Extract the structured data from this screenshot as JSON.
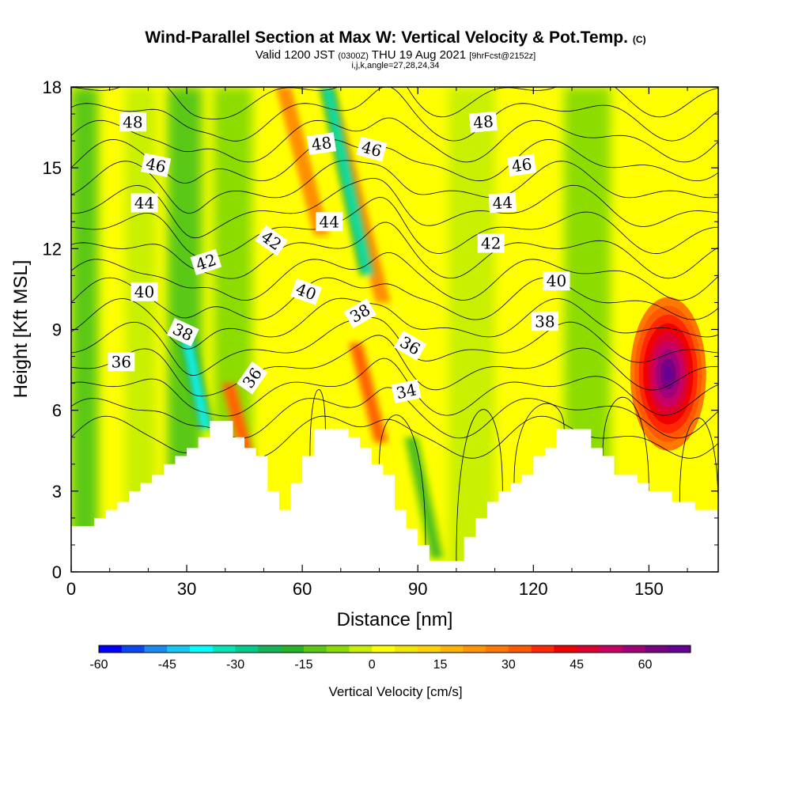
{
  "title": {
    "main": "Wind-Parallel Section at Max W: Vertical Velocity & Pot.Temp.",
    "copyright": "(C)",
    "valid_prefix": "Valid 1200 JST",
    "valid_utc": "(0300Z)",
    "valid_date": "THU 19 Aug 2021",
    "forecast": "[9hrFcst@2152z]",
    "indices": "i,j,k,angle=27,28,24,34"
  },
  "chart_data": {
    "type": "heatmap",
    "xlabel": "Distance [nm]",
    "ylabel": "Height [Kft MSL]",
    "xlim": [
      0,
      168
    ],
    "ylim": [
      0,
      18
    ],
    "xticks": [
      0,
      30,
      60,
      90,
      120,
      150
    ],
    "yticks": [
      0,
      3,
      6,
      9,
      12,
      15,
      18
    ],
    "colorbar": {
      "label": "Vertical Velocity [cm/s]",
      "range": [
        -60,
        70
      ],
      "step": 5,
      "tick_values": [
        -60,
        -45,
        -30,
        -15,
        0,
        15,
        30,
        45,
        60
      ],
      "colors": [
        "#0000ff",
        "#0a46f2",
        "#1a8cf0",
        "#14c8f2",
        "#00ffff",
        "#00e6b4",
        "#00cc8c",
        "#14b45a",
        "#28b428",
        "#5ac814",
        "#8cdc00",
        "#c8f000",
        "#ffff00",
        "#f5e600",
        "#ffd200",
        "#ffb400",
        "#ff9600",
        "#ff7800",
        "#ff5a00",
        "#ff2800",
        "#f00000",
        "#dc0032",
        "#c80064",
        "#a00078",
        "#780082",
        "#640096"
      ]
    },
    "updrafts": [
      {
        "x": 155,
        "z_bottom": 4.5,
        "z_top": 10.2,
        "w_max": 66
      },
      {
        "x": 80.5,
        "z_bottom": 4.8,
        "z_top": 8.5,
        "w_max": 42
      },
      {
        "x": 47.5,
        "z_bottom": 3.3,
        "z_top": 7.0,
        "w_max": 40
      },
      {
        "x": 65,
        "z_bottom": 12.5,
        "z_top": 18,
        "w_max": 25
      },
      {
        "x": 81,
        "z_bottom": 10,
        "z_top": 18,
        "w_max": 25
      }
    ],
    "downdrafts": [
      {
        "x": 35,
        "z_bottom": 5.3,
        "z_top": 9,
        "w_min": -38
      },
      {
        "x": 77,
        "z_bottom": 11,
        "z_top": 18,
        "w_min": -35
      },
      {
        "x": 95,
        "z_bottom": 0.5,
        "z_top": 5,
        "w_min": -18
      }
    ],
    "terrain": [
      {
        "x": 0,
        "z": 1.7
      },
      {
        "x": 3,
        "z": 1.7
      },
      {
        "x": 6,
        "z": 2.0
      },
      {
        "x": 9,
        "z": 2.3
      },
      {
        "x": 12,
        "z": 2.6
      },
      {
        "x": 15,
        "z": 3.0
      },
      {
        "x": 18,
        "z": 3.3
      },
      {
        "x": 21,
        "z": 3.6
      },
      {
        "x": 24,
        "z": 4.0
      },
      {
        "x": 27,
        "z": 4.3
      },
      {
        "x": 30,
        "z": 4.6
      },
      {
        "x": 33,
        "z": 5.0
      },
      {
        "x": 36,
        "z": 5.6
      },
      {
        "x": 39,
        "z": 5.6
      },
      {
        "x": 42,
        "z": 5.0
      },
      {
        "x": 45,
        "z": 4.6
      },
      {
        "x": 48,
        "z": 4.3
      },
      {
        "x": 51,
        "z": 3.0
      },
      {
        "x": 54,
        "z": 2.3
      },
      {
        "x": 57,
        "z": 3.3
      },
      {
        "x": 60,
        "z": 4.3
      },
      {
        "x": 63,
        "z": 5.3
      },
      {
        "x": 66,
        "z": 5.3
      },
      {
        "x": 69,
        "z": 5.3
      },
      {
        "x": 72,
        "z": 5.0
      },
      {
        "x": 75,
        "z": 4.6
      },
      {
        "x": 78,
        "z": 4.0
      },
      {
        "x": 81,
        "z": 3.6
      },
      {
        "x": 84,
        "z": 2.3
      },
      {
        "x": 87,
        "z": 1.6
      },
      {
        "x": 90,
        "z": 1.0
      },
      {
        "x": 93,
        "z": 0.4
      },
      {
        "x": 96,
        "z": 0.4
      },
      {
        "x": 99,
        "z": 0.4
      },
      {
        "x": 102,
        "z": 1.3
      },
      {
        "x": 105,
        "z": 2.0
      },
      {
        "x": 108,
        "z": 2.6
      },
      {
        "x": 111,
        "z": 3.0
      },
      {
        "x": 114,
        "z": 3.3
      },
      {
        "x": 117,
        "z": 3.6
      },
      {
        "x": 120,
        "z": 4.3
      },
      {
        "x": 123,
        "z": 4.6
      },
      {
        "x": 126,
        "z": 5.3
      },
      {
        "x": 129,
        "z": 5.3
      },
      {
        "x": 132,
        "z": 5.3
      },
      {
        "x": 135,
        "z": 4.6
      },
      {
        "x": 138,
        "z": 4.3
      },
      {
        "x": 141,
        "z": 3.6
      },
      {
        "x": 144,
        "z": 3.6
      },
      {
        "x": 147,
        "z": 3.3
      },
      {
        "x": 150,
        "z": 3.0
      },
      {
        "x": 153,
        "z": 3.0
      },
      {
        "x": 156,
        "z": 2.6
      },
      {
        "x": 159,
        "z": 2.6
      },
      {
        "x": 162,
        "z": 2.3
      },
      {
        "x": 165,
        "z": 2.3
      },
      {
        "x": 168,
        "z": 2.3
      }
    ],
    "theta_contours": {
      "levels": [
        34,
        35,
        36,
        37,
        38,
        39,
        40,
        41,
        42,
        43,
        44,
        45,
        46,
        47,
        48,
        49
      ],
      "labels": [
        {
          "text": "48",
          "x": 16,
          "z": 16.7,
          "angle": 0
        },
        {
          "text": "46",
          "x": 22,
          "z": 15.1,
          "angle": 12
        },
        {
          "text": "44",
          "x": 19,
          "z": 13.7,
          "angle": 0
        },
        {
          "text": "42",
          "x": 35,
          "z": 11.5,
          "angle": -18
        },
        {
          "text": "40",
          "x": 19,
          "z": 10.4,
          "angle": 0
        },
        {
          "text": "38",
          "x": 29,
          "z": 8.9,
          "angle": 25
        },
        {
          "text": "36",
          "x": 13,
          "z": 7.8,
          "angle": 0
        },
        {
          "text": "36",
          "x": 47,
          "z": 7.2,
          "angle": -55
        },
        {
          "text": "42",
          "x": 52,
          "z": 12.3,
          "angle": 35
        },
        {
          "text": "40",
          "x": 61,
          "z": 10.4,
          "angle": 20
        },
        {
          "text": "44",
          "x": 67,
          "z": 13.0,
          "angle": 0
        },
        {
          "text": "48",
          "x": 65,
          "z": 15.9,
          "angle": -8
        },
        {
          "text": "46",
          "x": 78,
          "z": 15.7,
          "angle": 15
        },
        {
          "text": "38",
          "x": 75,
          "z": 9.6,
          "angle": -30
        },
        {
          "text": "36",
          "x": 88,
          "z": 8.4,
          "angle": 30
        },
        {
          "text": "34",
          "x": 87,
          "z": 6.7,
          "angle": -12
        },
        {
          "text": "48",
          "x": 107,
          "z": 16.7,
          "angle": -5
        },
        {
          "text": "46",
          "x": 117,
          "z": 15.1,
          "angle": -8
        },
        {
          "text": "44",
          "x": 112,
          "z": 13.7,
          "angle": -3
        },
        {
          "text": "42",
          "x": 109,
          "z": 12.2,
          "angle": 0
        },
        {
          "text": "40",
          "x": 126,
          "z": 10.8,
          "angle": 0
        },
        {
          "text": "38",
          "x": 123,
          "z": 9.3,
          "angle": 0
        }
      ]
    }
  }
}
